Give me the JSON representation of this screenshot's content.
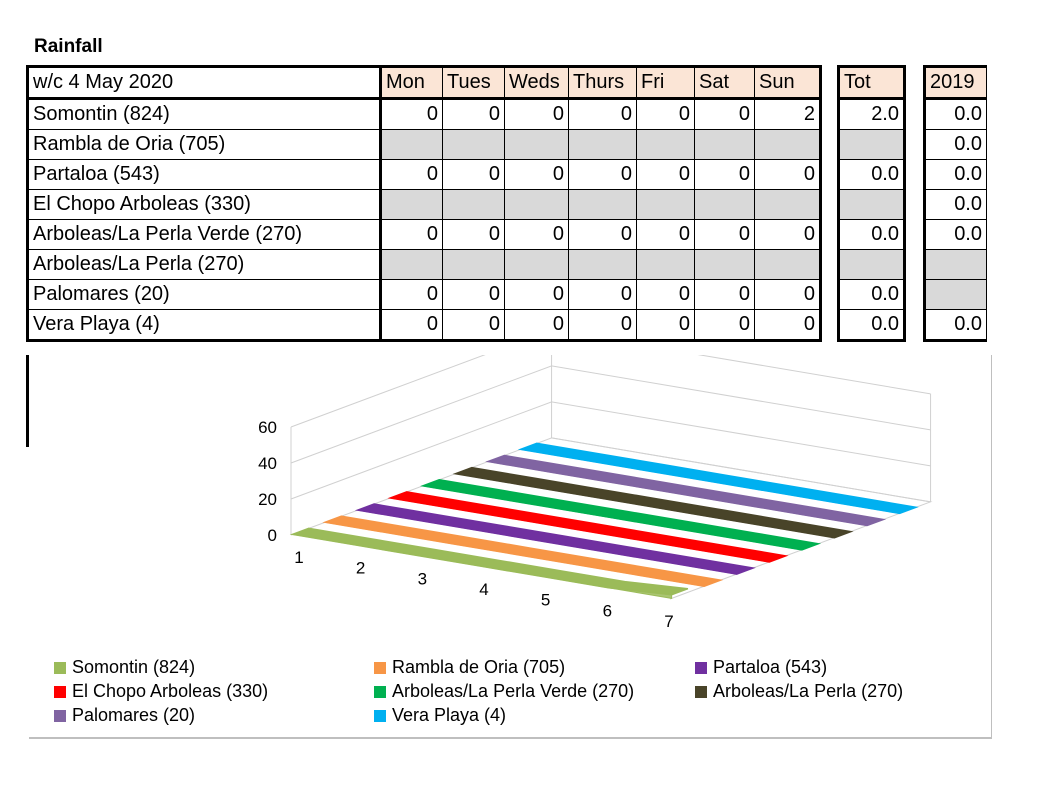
{
  "title": "Rainfall",
  "table": {
    "week_label": "w/c 4 May  2020",
    "day_headers": [
      "Mon",
      "Tues",
      "Weds",
      "Thurs",
      "Fri",
      "Sat",
      "Sun"
    ],
    "tot_header": "Tot",
    "year_header": "2019",
    "rows": [
      {
        "name": "Somontin (824)",
        "days": [
          "0",
          "0",
          "0",
          "0",
          "0",
          "0",
          "2"
        ],
        "tot": "2.0",
        "y2019": "0.0"
      },
      {
        "name": "Rambla de Oria (705)",
        "days": [
          "",
          "",
          "",
          "",
          "",
          "",
          ""
        ],
        "tot": "",
        "y2019": "0.0"
      },
      {
        "name": "Partaloa (543)",
        "days": [
          "0",
          "0",
          "0",
          "0",
          "0",
          "0",
          "0"
        ],
        "tot": "0.0",
        "y2019": "0.0"
      },
      {
        "name": "El Chopo Arboleas (330)",
        "days": [
          "",
          "",
          "",
          "",
          "",
          "",
          ""
        ],
        "tot": "",
        "y2019": "0.0"
      },
      {
        "name": "Arboleas/La Perla Verde (270)",
        "days": [
          "0",
          "0",
          "0",
          "0",
          "0",
          "0",
          "0"
        ],
        "tot": "0.0",
        "y2019": "0.0"
      },
      {
        "name": "Arboleas/La Perla (270)",
        "days": [
          "",
          "",
          "",
          "",
          "",
          "",
          ""
        ],
        "tot": "",
        "y2019": ""
      },
      {
        "name": "Palomares (20)",
        "days": [
          "0",
          "0",
          "0",
          "0",
          "0",
          "0",
          "0"
        ],
        "tot": "0.0",
        "y2019": ""
      },
      {
        "name": "Vera Playa (4)",
        "days": [
          "0",
          "0",
          "0",
          "0",
          "0",
          "0",
          "0"
        ],
        "tot": "0.0",
        "y2019": "0.0"
      }
    ]
  },
  "chart_data": {
    "type": "area",
    "style": "3d",
    "title": "",
    "x": [
      1,
      2,
      3,
      4,
      5,
      6,
      7
    ],
    "ylim": [
      0,
      60
    ],
    "yticks": [
      0,
      20,
      40,
      60
    ],
    "grid": true,
    "legend_position": "bottom",
    "series": [
      {
        "name": "Somontin (824)",
        "color": "#9bbb59",
        "values": [
          0,
          0,
          0,
          0,
          0,
          0,
          2
        ]
      },
      {
        "name": "Rambla de Oria (705)",
        "color": "#f79646",
        "values": [
          0,
          0,
          0,
          0,
          0,
          0,
          0
        ]
      },
      {
        "name": "Partaloa (543)",
        "color": "#7030a0",
        "values": [
          0,
          0,
          0,
          0,
          0,
          0,
          0
        ]
      },
      {
        "name": "El Chopo Arboleas (330)",
        "color": "#ff0000",
        "values": [
          0,
          0,
          0,
          0,
          0,
          0,
          0
        ]
      },
      {
        "name": "Arboleas/La Perla Verde (270)",
        "color": "#00b050",
        "values": [
          0,
          0,
          0,
          0,
          0,
          0,
          0
        ]
      },
      {
        "name": "Arboleas/La Perla (270)",
        "color": "#494429",
        "values": [
          0,
          0,
          0,
          0,
          0,
          0,
          0
        ]
      },
      {
        "name": "Palomares (20)",
        "color": "#8064a2",
        "values": [
          0,
          0,
          0,
          0,
          0,
          0,
          0
        ]
      },
      {
        "name": "Vera Playa (4)",
        "color": "#00b0f0",
        "values": [
          0,
          0,
          0,
          0,
          0,
          0,
          0
        ]
      }
    ]
  }
}
